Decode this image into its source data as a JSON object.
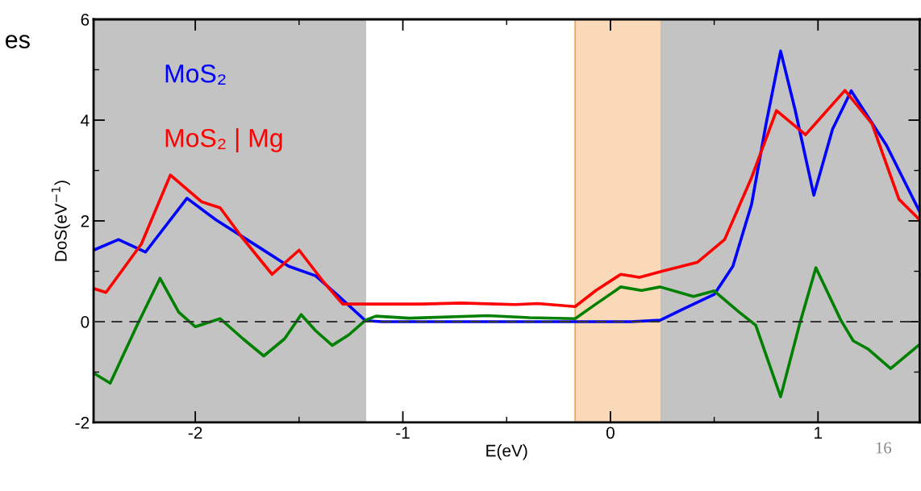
{
  "chart_data": {
    "type": "line",
    "xlabel": "E(eV)",
    "ylabel": "DoS(eV$^{−1}$)",
    "xlim": [
      -2.49,
      1.49
    ],
    "ylim": [
      -2,
      6
    ],
    "xticks": [
      -2,
      -1,
      0,
      1
    ],
    "yticks": [
      -2,
      0,
      2,
      4,
      6
    ],
    "grid": false,
    "series": [
      {
        "name": "MoS₂",
        "color": "#0000ff",
        "x": [
          -2.49,
          -2.37,
          -2.24,
          -2.04,
          -1.9,
          -1.69,
          -1.55,
          -1.42,
          -1.31,
          -1.18,
          -1.1,
          -0.5,
          0.1,
          0.24,
          0.36,
          0.5,
          0.59,
          0.68,
          0.75,
          0.82,
          0.89,
          0.98,
          1.07,
          1.16,
          1.33,
          1.49
        ],
        "values": [
          1.42,
          1.63,
          1.38,
          2.45,
          2.02,
          1.47,
          1.1,
          0.91,
          0.51,
          0.02,
          0,
          0,
          0,
          0.03,
          0.27,
          0.54,
          1.1,
          2.33,
          3.93,
          5.37,
          4.2,
          2.51,
          3.82,
          4.58,
          3.5,
          2.18
        ]
      },
      {
        "name": "MoS₂ | Mg",
        "color": "#ff0000",
        "x": [
          -2.49,
          -2.43,
          -2.26,
          -2.12,
          -1.97,
          -1.88,
          -1.78,
          -1.63,
          -1.5,
          -1.38,
          -1.29,
          -1.18,
          -0.91,
          -0.72,
          -0.46,
          -0.35,
          -0.17,
          -0.07,
          0.05,
          0.14,
          0.24,
          0.42,
          0.55,
          0.68,
          0.8,
          0.94,
          1.13,
          1.26,
          1.39,
          1.49
        ],
        "values": [
          0.66,
          0.58,
          1.54,
          2.91,
          2.38,
          2.26,
          1.7,
          0.94,
          1.42,
          0.78,
          0.35,
          0.35,
          0.35,
          0.37,
          0.34,
          0.36,
          0.3,
          0.62,
          0.94,
          0.88,
          0.99,
          1.18,
          1.63,
          2.86,
          4.19,
          3.71,
          4.59,
          3.93,
          2.43,
          2.02
        ]
      },
      {
        "color": "#008000",
        "x": [
          -2.49,
          -2.41,
          -2.28,
          -2.17,
          -2.08,
          -2.0,
          -1.88,
          -1.77,
          -1.67,
          -1.57,
          -1.49,
          -1.42,
          -1.34,
          -1.26,
          -1.18,
          -1.13,
          -0.97,
          -0.59,
          -0.39,
          -0.17,
          -0.07,
          0.05,
          0.15,
          0.24,
          0.4,
          0.5,
          0.62,
          0.7,
          0.82,
          0.91,
          0.99,
          1.11,
          1.17,
          1.24,
          1.35,
          1.49
        ],
        "values": [
          -1.02,
          -1.22,
          -0.07,
          0.86,
          0.19,
          -0.1,
          0.06,
          -0.34,
          -0.68,
          -0.34,
          0.14,
          -0.18,
          -0.47,
          -0.26,
          0.03,
          0.11,
          0.07,
          0.12,
          0.08,
          0.06,
          0.35,
          0.69,
          0.62,
          0.69,
          0.5,
          0.61,
          0.19,
          -0.07,
          -1.49,
          -0.07,
          1.07,
          0.03,
          -0.38,
          -0.54,
          -0.93,
          -0.45
        ]
      }
    ],
    "ref_lines": [
      {
        "axis": "y",
        "value": 0,
        "color": "#333333",
        "line_style": "dashed"
      }
    ],
    "bands": [
      {
        "axis": "x",
        "from": -2.49,
        "to": -1.18,
        "color": "#c3c3c3"
      },
      {
        "axis": "x",
        "from": -0.17,
        "to": 0.245,
        "color": "#fad9b8"
      },
      {
        "axis": "x",
        "from": 0.245,
        "to": 1.49,
        "color": "#c3c3c3"
      }
    ],
    "annotations": [
      "es",
      "16"
    ]
  }
}
